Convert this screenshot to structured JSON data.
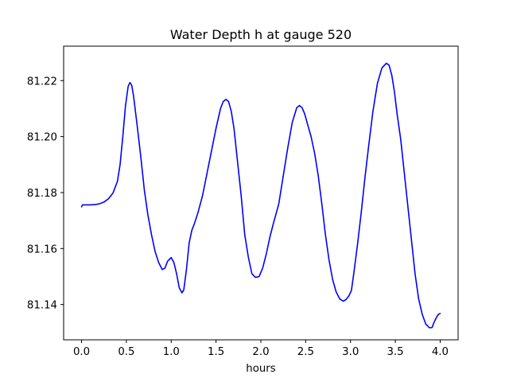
{
  "chart_data": {
    "type": "line",
    "title": "Water Depth h at gauge 520",
    "xlabel": "hours",
    "ylabel": "",
    "xlim": [
      -0.2,
      4.2
    ],
    "ylim": [
      81.1274,
      81.2323
    ],
    "x_ticks": [
      0.0,
      0.5,
      1.0,
      1.5,
      2.0,
      2.5,
      3.0,
      3.5,
      4.0
    ],
    "x_tick_labels": [
      "0.0",
      "0.5",
      "1.0",
      "1.5",
      "2.0",
      "2.5",
      "3.0",
      "3.5",
      "4.0"
    ],
    "y_ticks": [
      81.14,
      81.16,
      81.18,
      81.2,
      81.22
    ],
    "y_tick_labels": [
      "81.14",
      "81.16",
      "81.18",
      "81.20",
      "81.22"
    ],
    "grid": false,
    "line_color": "#0000ff",
    "series": [
      {
        "x": [
          0.0,
          0.01,
          0.05,
          0.1,
          0.15,
          0.2,
          0.25,
          0.3,
          0.35,
          0.4,
          0.43,
          0.46,
          0.49,
          0.52,
          0.54,
          0.56,
          0.58,
          0.62,
          0.66,
          0.7,
          0.74,
          0.78,
          0.82,
          0.86,
          0.9,
          0.93,
          0.96,
          1.0,
          1.03,
          1.06,
          1.09,
          1.12,
          1.14,
          1.17,
          1.2,
          1.23,
          1.26,
          1.3,
          1.35,
          1.4,
          1.45,
          1.5,
          1.55,
          1.58,
          1.61,
          1.64,
          1.67,
          1.7,
          1.74,
          1.78,
          1.82,
          1.86,
          1.9,
          1.94,
          1.98,
          2.02,
          2.06,
          2.1,
          2.14,
          2.2,
          2.25,
          2.3,
          2.35,
          2.4,
          2.43,
          2.46,
          2.49,
          2.52,
          2.56,
          2.6,
          2.64,
          2.68,
          2.72,
          2.76,
          2.8,
          2.84,
          2.88,
          2.92,
          2.95,
          2.98,
          3.01,
          3.04,
          3.08,
          3.12,
          3.16,
          3.2,
          3.25,
          3.3,
          3.35,
          3.4,
          3.43,
          3.46,
          3.49,
          3.52,
          3.56,
          3.6,
          3.64,
          3.68,
          3.72,
          3.76,
          3.8,
          3.84,
          3.88,
          3.91,
          3.93,
          3.96,
          3.98,
          4.0
        ],
        "y": [
          81.1749,
          81.1756,
          81.1756,
          81.1756,
          81.1757,
          81.176,
          81.1766,
          81.1778,
          81.1798,
          81.184,
          81.19,
          81.2,
          81.211,
          81.218,
          81.2193,
          81.2183,
          81.2145,
          81.204,
          81.193,
          81.181,
          81.172,
          81.165,
          81.159,
          81.155,
          81.1525,
          81.153,
          81.1555,
          81.1568,
          81.155,
          81.151,
          81.146,
          81.1442,
          81.1452,
          81.1525,
          81.162,
          81.1665,
          81.169,
          81.173,
          81.179,
          81.187,
          81.195,
          81.203,
          81.21,
          81.2125,
          81.2133,
          81.2125,
          81.209,
          81.203,
          81.191,
          81.179,
          81.165,
          81.157,
          81.151,
          81.1497,
          81.15,
          81.153,
          81.158,
          81.164,
          81.169,
          81.176,
          81.186,
          81.196,
          81.205,
          81.2103,
          81.2111,
          81.2103,
          81.208,
          81.2045,
          81.2,
          81.194,
          81.186,
          81.176,
          81.165,
          81.156,
          81.149,
          81.1445,
          81.142,
          81.1412,
          81.1418,
          81.143,
          81.145,
          81.152,
          81.162,
          81.173,
          81.185,
          81.196,
          81.209,
          81.219,
          81.2245,
          81.2262,
          81.2255,
          81.222,
          81.216,
          81.208,
          81.199,
          81.187,
          81.175,
          81.163,
          81.151,
          81.142,
          81.1365,
          81.133,
          81.1317,
          81.1318,
          81.1335,
          81.1355,
          81.1365,
          81.1368
        ]
      }
    ]
  }
}
